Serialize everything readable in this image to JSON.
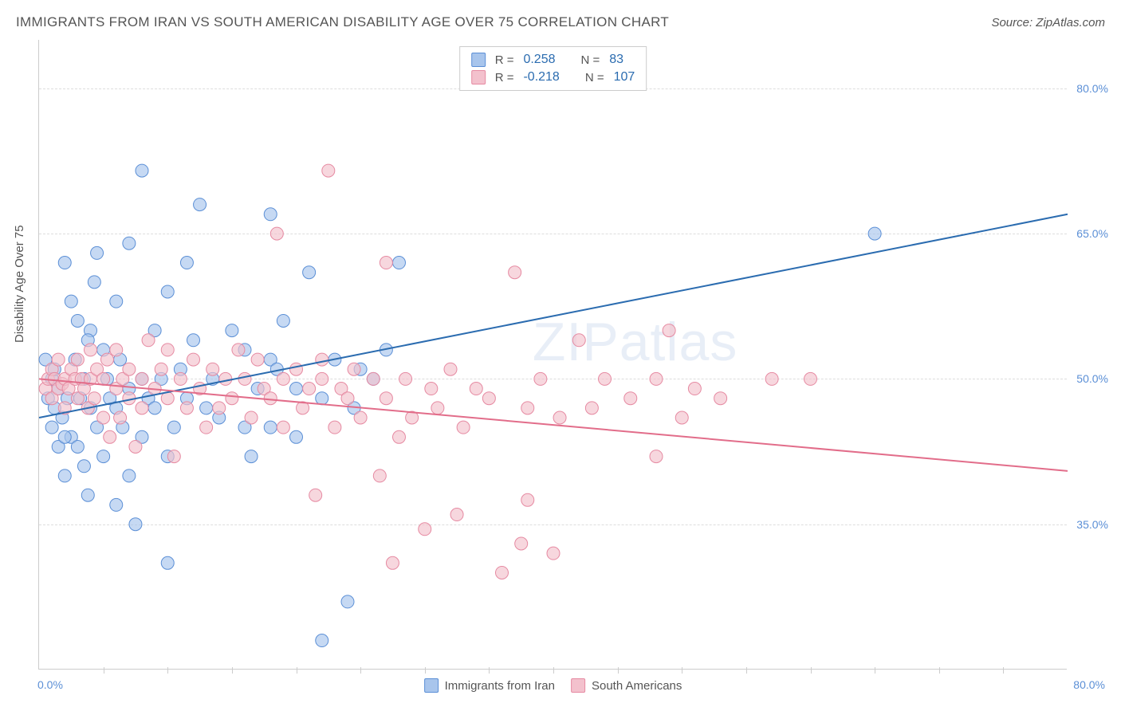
{
  "header": {
    "title": "IMMIGRANTS FROM IRAN VS SOUTH AMERICAN DISABILITY AGE OVER 75 CORRELATION CHART",
    "source": "Source: ZipAtlas.com"
  },
  "ylabel": "Disability Age Over 75",
  "watermark": "ZIPatlas",
  "chart": {
    "type": "scatter",
    "xlim": [
      0,
      80
    ],
    "ylim": [
      20,
      85
    ],
    "x_label_min": "0.0%",
    "x_label_max": "80.0%",
    "y_ticks": [
      35.0,
      50.0,
      65.0,
      80.0
    ],
    "y_tick_labels": [
      "35.0%",
      "50.0%",
      "65.0%",
      "80.0%"
    ],
    "x_minor_ticks": [
      5,
      10,
      15,
      20,
      25,
      30,
      35,
      40,
      45,
      50,
      55,
      60,
      65,
      70,
      75
    ],
    "background_color": "#ffffff",
    "grid_color": "#dddddd",
    "axis_color": "#cccccc"
  },
  "series": [
    {
      "name": "Immigrants from Iran",
      "fill": "#a8c5ec",
      "stroke": "#5b8fd6",
      "line_color": "#2b6cb0",
      "line_width": 2,
      "opacity": 0.65,
      "marker_radius": 8,
      "trend": {
        "x1": 0,
        "y1": 46,
        "x2": 80,
        "y2": 67
      },
      "R": "0.258",
      "N": "83",
      "points": [
        [
          0.5,
          52
        ],
        [
          0.7,
          48
        ],
        [
          1,
          50
        ],
        [
          1,
          45
        ],
        [
          1.2,
          47
        ],
        [
          1.2,
          51
        ],
        [
          1.5,
          49
        ],
        [
          1.5,
          43
        ],
        [
          1.8,
          46
        ],
        [
          2,
          62
        ],
        [
          2,
          40
        ],
        [
          2.2,
          48
        ],
        [
          2.5,
          58
        ],
        [
          2.5,
          44
        ],
        [
          2.8,
          52
        ],
        [
          3,
          56
        ],
        [
          3,
          43
        ],
        [
          3.2,
          48
        ],
        [
          3.5,
          50
        ],
        [
          3.5,
          41
        ],
        [
          3.8,
          38
        ],
        [
          4,
          47
        ],
        [
          4,
          55
        ],
        [
          4.3,
          60
        ],
        [
          4.5,
          63
        ],
        [
          4.5,
          45
        ],
        [
          5,
          53
        ],
        [
          5,
          42
        ],
        [
          5.3,
          50
        ],
        [
          5.5,
          48
        ],
        [
          6,
          58
        ],
        [
          6,
          47
        ],
        [
          6,
          37
        ],
        [
          6.3,
          52
        ],
        [
          6.5,
          45
        ],
        [
          7,
          64
        ],
        [
          7,
          49
        ],
        [
          7,
          40
        ],
        [
          7.5,
          35
        ],
        [
          8,
          71.5
        ],
        [
          8,
          50
        ],
        [
          8,
          44
        ],
        [
          8.5,
          48
        ],
        [
          9,
          55
        ],
        [
          9,
          47
        ],
        [
          9.5,
          50
        ],
        [
          10,
          59
        ],
        [
          10,
          42
        ],
        [
          10,
          31
        ],
        [
          10.5,
          45
        ],
        [
          11,
          51
        ],
        [
          11.5,
          48
        ],
        [
          11.5,
          62
        ],
        [
          12,
          54
        ],
        [
          12.5,
          68
        ],
        [
          13,
          47
        ],
        [
          13.5,
          50
        ],
        [
          14,
          46
        ],
        [
          15,
          55
        ],
        [
          16,
          45
        ],
        [
          16,
          53
        ],
        [
          16.5,
          42
        ],
        [
          17,
          49
        ],
        [
          18,
          52
        ],
        [
          18,
          45
        ],
        [
          18,
          67
        ],
        [
          18.5,
          51
        ],
        [
          19,
          56
        ],
        [
          20,
          49
        ],
        [
          20,
          44
        ],
        [
          21,
          61
        ],
        [
          22,
          48
        ],
        [
          22,
          23
        ],
        [
          23,
          52
        ],
        [
          24,
          27
        ],
        [
          24.5,
          47
        ],
        [
          25,
          51
        ],
        [
          26,
          50
        ],
        [
          27,
          53
        ],
        [
          28,
          62
        ],
        [
          65,
          65
        ],
        [
          2,
          44
        ],
        [
          3.8,
          54
        ]
      ]
    },
    {
      "name": "South Americans",
      "fill": "#f3c1cd",
      "stroke": "#e68aa2",
      "line_color": "#e26d8a",
      "line_width": 2,
      "opacity": 0.65,
      "marker_radius": 8,
      "trend": {
        "x1": 0,
        "y1": 50,
        "x2": 80,
        "y2": 40.5
      },
      "R": "-0.218",
      "N": "107",
      "points": [
        [
          0.5,
          49
        ],
        [
          0.7,
          50
        ],
        [
          1,
          51
        ],
        [
          1,
          48
        ],
        [
          1.2,
          50
        ],
        [
          1.5,
          49
        ],
        [
          1.5,
          52
        ],
        [
          1.8,
          49.5
        ],
        [
          2,
          50
        ],
        [
          2,
          47
        ],
        [
          2.3,
          49
        ],
        [
          2.5,
          51
        ],
        [
          2.8,
          50
        ],
        [
          3,
          48
        ],
        [
          3,
          52
        ],
        [
          3.3,
          50
        ],
        [
          3.5,
          49
        ],
        [
          3.8,
          47
        ],
        [
          4,
          50
        ],
        [
          4,
          53
        ],
        [
          4.3,
          48
        ],
        [
          4.5,
          51
        ],
        [
          5,
          46
        ],
        [
          5,
          50
        ],
        [
          5.3,
          52
        ],
        [
          5.5,
          44
        ],
        [
          6,
          49
        ],
        [
          6,
          53
        ],
        [
          6.3,
          46
        ],
        [
          6.5,
          50
        ],
        [
          7,
          51
        ],
        [
          7,
          48
        ],
        [
          7.5,
          43
        ],
        [
          8,
          50
        ],
        [
          8,
          47
        ],
        [
          8.5,
          54
        ],
        [
          9,
          49
        ],
        [
          9.5,
          51
        ],
        [
          10,
          48
        ],
        [
          10,
          53
        ],
        [
          10.5,
          42
        ],
        [
          11,
          50
        ],
        [
          11.5,
          47
        ],
        [
          12,
          52
        ],
        [
          12.5,
          49
        ],
        [
          13,
          45
        ],
        [
          13.5,
          51
        ],
        [
          14,
          47
        ],
        [
          14.5,
          50
        ],
        [
          15,
          48
        ],
        [
          15.5,
          53
        ],
        [
          16,
          50
        ],
        [
          16.5,
          46
        ],
        [
          17,
          52
        ],
        [
          17.5,
          49
        ],
        [
          18,
          48
        ],
        [
          18.5,
          65
        ],
        [
          19,
          50
        ],
        [
          19,
          45
        ],
        [
          20,
          51
        ],
        [
          20.5,
          47
        ],
        [
          21,
          49
        ],
        [
          21.5,
          38
        ],
        [
          22,
          50
        ],
        [
          22,
          52
        ],
        [
          22.5,
          71.5
        ],
        [
          23,
          45
        ],
        [
          23.5,
          49
        ],
        [
          24,
          48
        ],
        [
          24.5,
          51
        ],
        [
          25,
          46
        ],
        [
          26,
          50
        ],
        [
          26.5,
          40
        ],
        [
          27,
          48
        ],
        [
          27,
          62
        ],
        [
          27.5,
          31
        ],
        [
          28,
          44
        ],
        [
          28.5,
          50
        ],
        [
          29,
          46
        ],
        [
          30,
          34.5
        ],
        [
          30.5,
          49
        ],
        [
          31,
          47
        ],
        [
          32,
          51
        ],
        [
          32.5,
          36
        ],
        [
          33,
          45
        ],
        [
          34,
          49
        ],
        [
          35,
          48
        ],
        [
          36,
          30
        ],
        [
          37,
          61
        ],
        [
          37.5,
          33
        ],
        [
          38,
          47
        ],
        [
          38,
          37.5
        ],
        [
          39,
          50
        ],
        [
          40,
          32
        ],
        [
          40.5,
          46
        ],
        [
          42,
          54
        ],
        [
          43,
          47
        ],
        [
          44,
          50
        ],
        [
          46,
          48
        ],
        [
          48,
          42
        ],
        [
          49,
          55
        ],
        [
          50,
          46
        ],
        [
          51,
          49
        ],
        [
          53,
          48
        ],
        [
          57,
          50
        ],
        [
          60,
          50
        ],
        [
          48,
          50
        ]
      ]
    }
  ],
  "legend_top": {
    "r_label": "R =",
    "n_label": "N ="
  }
}
